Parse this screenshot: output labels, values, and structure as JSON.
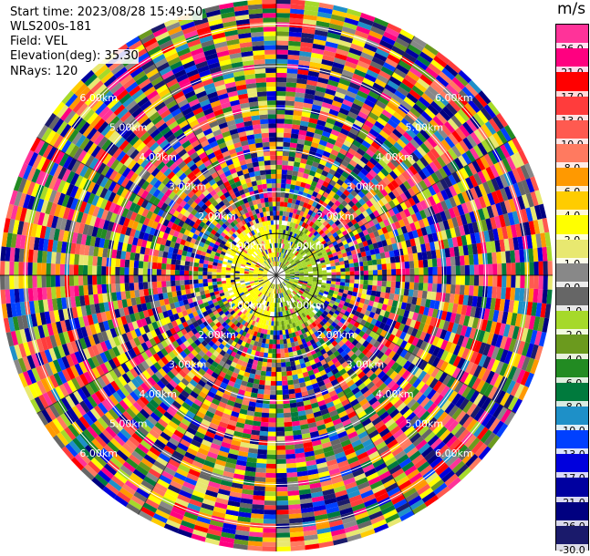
{
  "header": {
    "start_time": "Start time: 2023/08/28 15:49:50",
    "instrument": "WLS200s-181",
    "field": "Field: VEL",
    "elevation": "Elevation(deg): 35.30",
    "nrays": "NRays: 120"
  },
  "colorbar": {
    "unit": "m/s",
    "segments": [
      {
        "label": "26.0",
        "color": "#ff3399"
      },
      {
        "label": "21.0",
        "color": "#ff0080"
      },
      {
        "label": "17.0",
        "color": "#ff0000"
      },
      {
        "label": "13.0",
        "color": "#ff3c3c"
      },
      {
        "label": "10.0",
        "color": "#ff5a50"
      },
      {
        "label": "8.0",
        "color": "#ff7a60"
      },
      {
        "label": "6.0",
        "color": "#ff9900"
      },
      {
        "label": "4.0",
        "color": "#ffcc00"
      },
      {
        "label": "2.0",
        "color": "#ffff00"
      },
      {
        "label": "1.0",
        "color": "#e8e870"
      },
      {
        "label": "0.0",
        "color": "#888888"
      },
      {
        "label": "-1.0",
        "color": "#666666"
      },
      {
        "label": "-2.0",
        "color": "#a6d92a"
      },
      {
        "label": "-4.0",
        "color": "#6b9a1e"
      },
      {
        "label": "-6.0",
        "color": "#228b22"
      },
      {
        "label": "-8.0",
        "color": "#007a3d"
      },
      {
        "label": "-10.0",
        "color": "#1e90c8"
      },
      {
        "label": "-13.0",
        "color": "#0040ff"
      },
      {
        "label": "-17.0",
        "color": "#0000dd"
      },
      {
        "label": "-21.0",
        "color": "#0000a0"
      },
      {
        "label": "-26.0",
        "color": "#000080"
      },
      {
        "label": "-30.0",
        "color": "#1a1a6b"
      }
    ]
  },
  "range_rings": {
    "labels": [
      "1.00km",
      "2.00km",
      "3.00km",
      "4.00km",
      "5.00km",
      "6.00km"
    ],
    "max_km": 6.6
  },
  "rays": 120
}
